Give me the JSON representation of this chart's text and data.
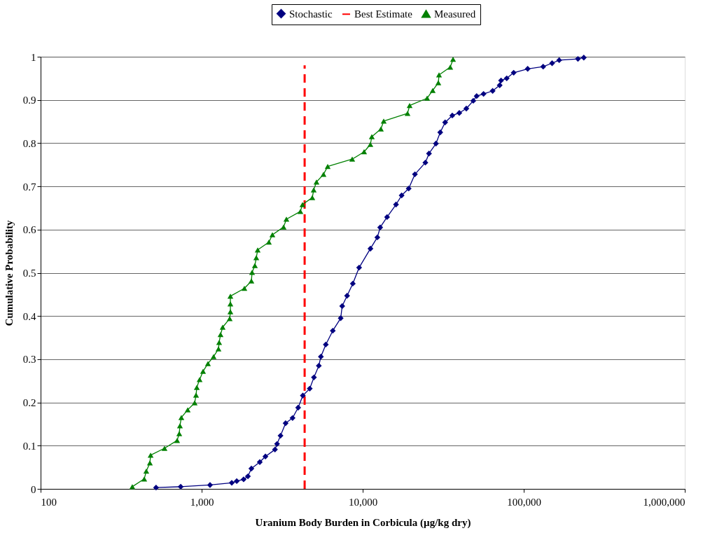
{
  "chart_data": {
    "type": "line",
    "xlabel": "Uranium Body Burden in Corbicula  (µg/kg dry)",
    "ylabel": "Cumulative Probability",
    "log": "x",
    "xlim": [
      100,
      1000000
    ],
    "xticks": [
      100,
      {
        "value": 1000,
        "label": "1,000"
      },
      {
        "value": 10000,
        "label": "10,000"
      },
      {
        "value": 100000,
        "label": "100,000"
      },
      {
        "value": 1000000,
        "label": "1,000,000"
      }
    ],
    "ylim": [
      0,
      1
    ],
    "yticks": [
      0,
      0.1,
      0.2,
      0.3,
      0.4,
      0.5,
      0.6,
      0.7,
      0.8,
      0.9,
      1
    ],
    "grid": "y",
    "legend": "top",
    "series": [
      {
        "name": "Stochastic",
        "color": "#000080",
        "marker": "diamond",
        "line_style": "solid",
        "x": [
          521,
          741,
          1127,
          1538,
          1651,
          1822,
          1937,
          2036,
          2296,
          2489,
          2853,
          2939,
          3088,
          3321,
          3668,
          3974,
          4249,
          4690,
          4980,
          5340,
          5500,
          5900,
          6520,
          7300,
          7460,
          8000,
          8680,
          9500,
          11170,
          12330,
          12840,
          14170,
          16100,
          17450,
          19300,
          21100,
          24500,
          25800,
          28500,
          30300,
          32500,
          36000,
          39800,
          44000,
          48600,
          51000,
          56300,
          64100,
          70900,
          72300,
          78400,
          86600,
          105800,
          132000,
          150000,
          166000,
          217000,
          236000
        ],
        "values": [
          0.003,
          0.005,
          0.009,
          0.014,
          0.018,
          0.022,
          0.029,
          0.047,
          0.062,
          0.075,
          0.091,
          0.104,
          0.123,
          0.152,
          0.164,
          0.188,
          0.216,
          0.232,
          0.258,
          0.285,
          0.306,
          0.334,
          0.366,
          0.395,
          0.423,
          0.447,
          0.475,
          0.512,
          0.556,
          0.582,
          0.605,
          0.629,
          0.658,
          0.679,
          0.695,
          0.728,
          0.755,
          0.776,
          0.799,
          0.825,
          0.848,
          0.864,
          0.87,
          0.88,
          0.898,
          0.909,
          0.914,
          0.921,
          0.934,
          0.945,
          0.95,
          0.963,
          0.972,
          0.977,
          0.985,
          0.992,
          0.995,
          0.998
        ]
      },
      {
        "name": "Best Estimate",
        "color": "#ff0000",
        "marker": "none",
        "line_style": "dashed",
        "x": [
          4360,
          4360
        ],
        "values": [
          0,
          0.98
        ]
      },
      {
        "name": "Measured",
        "color": "#008000",
        "marker": "triangle",
        "line_style": "solid",
        "x": [
          371,
          440,
          453,
          477,
          482,
          588,
          704,
          726,
          733,
          748,
          819,
          905,
          923,
          933,
          971,
          1020,
          1094,
          1186,
          1272,
          1284,
          1310,
          1350,
          1493,
          1508,
          1508,
          1508,
          1842,
          2036,
          2056,
          2140,
          2184,
          2228,
          2615,
          2749,
          3226,
          3359,
          4102,
          4227,
          4864,
          4963,
          5164,
          5709,
          6062,
          8607,
          10200,
          11160,
          11390,
          12970,
          13500,
          18980,
          19560,
          25120,
          27210,
          29490,
          29780,
          34960,
          36390
        ],
        "values": [
          0.005,
          0.023,
          0.041,
          0.06,
          0.078,
          0.094,
          0.112,
          0.128,
          0.146,
          0.165,
          0.183,
          0.199,
          0.217,
          0.235,
          0.253,
          0.272,
          0.29,
          0.306,
          0.324,
          0.339,
          0.357,
          0.374,
          0.394,
          0.41,
          0.428,
          0.446,
          0.464,
          0.481,
          0.501,
          0.517,
          0.535,
          0.553,
          0.571,
          0.588,
          0.606,
          0.624,
          0.642,
          0.658,
          0.674,
          0.692,
          0.71,
          0.728,
          0.746,
          0.763,
          0.78,
          0.797,
          0.815,
          0.833,
          0.851,
          0.869,
          0.887,
          0.904,
          0.922,
          0.94,
          0.958,
          0.976,
          0.994
        ]
      }
    ]
  }
}
